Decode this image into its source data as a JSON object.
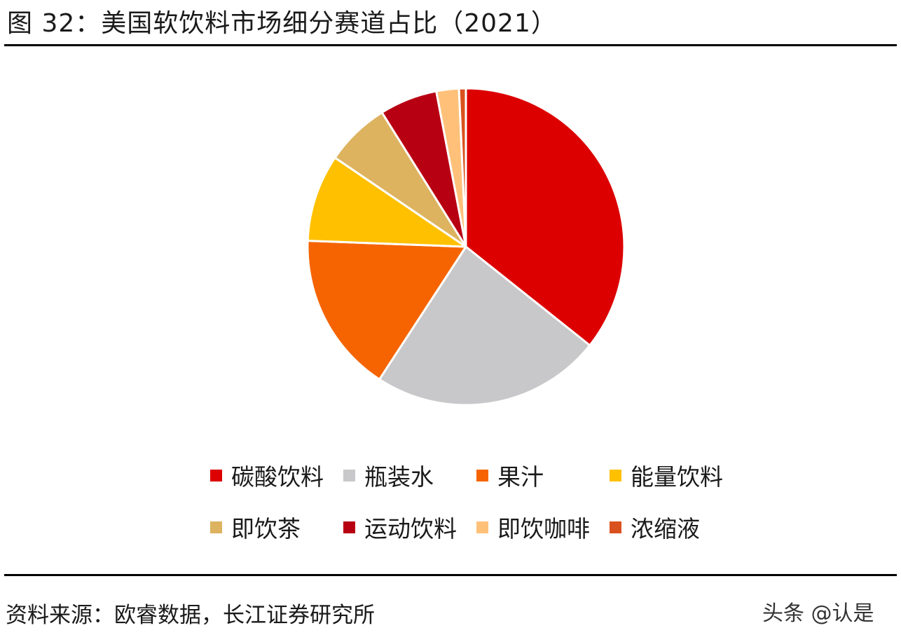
{
  "figure_title": "图 32：美国软饮料市场细分赛道占比（2021）",
  "source_text": "资料来源：欧睿数据，长江证券研究所",
  "watermark_text": "头条 @认是",
  "chart_data": {
    "type": "pie",
    "title": "美国软饮料市场细分赛道占比（2021）",
    "unit": "%",
    "start_angle_deg": 0,
    "direction": "clockwise",
    "legend_position": "bottom",
    "slices": [
      {
        "label": "碳酸饮料",
        "value": 35.7,
        "color": "#DD0000"
      },
      {
        "label": "瓶装水",
        "value": 23.5,
        "color": "#C8C8CA"
      },
      {
        "label": "果汁",
        "value": 16.4,
        "color": "#F56400"
      },
      {
        "label": "能量饮料",
        "value": 8.9,
        "color": "#FFC000"
      },
      {
        "label": "即饮茶",
        "value": 6.6,
        "color": "#DDB35F"
      },
      {
        "label": "运动饮料",
        "value": 5.9,
        "color": "#B80013"
      },
      {
        "label": "即饮咖啡",
        "value": 2.3,
        "color": "#FFC17A"
      },
      {
        "label": "浓缩液",
        "value": 0.7,
        "color": "#D9511E"
      }
    ]
  }
}
